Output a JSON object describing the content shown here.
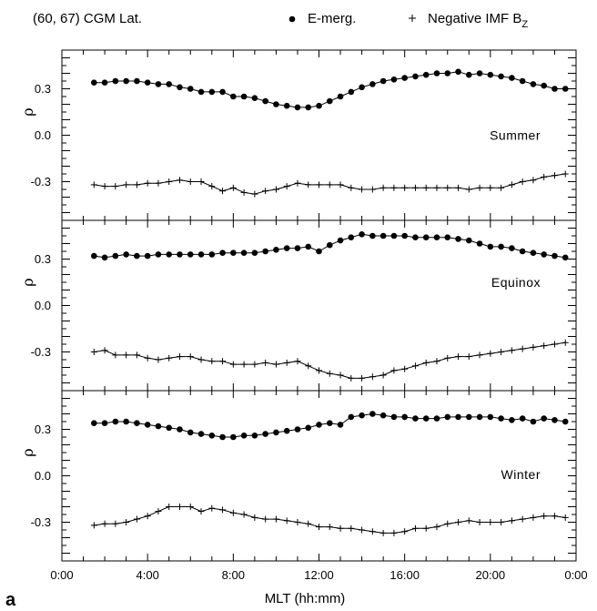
{
  "header": {
    "title": "(60, 67) CGM Lat.",
    "legend_emerg": "E-merg.",
    "legend_imf_prefix": "Negative IMF B",
    "legend_imf_sub": "Z"
  },
  "panel_letter": "a",
  "chart_data": {
    "type": "line",
    "xlabel": "MLT (hh:mm)",
    "ylabel": "ρ",
    "xlim": [
      0,
      24
    ],
    "ylim": [
      -0.55,
      0.55
    ],
    "x_tick_labels": [
      "0:00",
      "4:00",
      "8:00",
      "12:00",
      "16:00",
      "20:00",
      "0:00"
    ],
    "x_tick_values": [
      0,
      4,
      8,
      12,
      16,
      20,
      24
    ],
    "y_tick_labels": [
      "0.3",
      "0.0",
      "-0.3"
    ],
    "y_tick_values": [
      0.3,
      0.0,
      -0.3
    ],
    "x_start": 1.5,
    "x_step": 0.5,
    "legend": {
      "placement": "top"
    },
    "panels": [
      {
        "label": "Summer",
        "series": [
          {
            "name": "E-merg.",
            "marker": "dot",
            "values": [
              0.34,
              0.34,
              0.35,
              0.35,
              0.35,
              0.34,
              0.33,
              0.33,
              0.31,
              0.3,
              0.28,
              0.28,
              0.28,
              0.25,
              0.25,
              0.24,
              0.22,
              0.2,
              0.19,
              0.18,
              0.18,
              0.19,
              0.22,
              0.25,
              0.28,
              0.31,
              0.33,
              0.35,
              0.36,
              0.37,
              0.38,
              0.39,
              0.4,
              0.4,
              0.41,
              0.39,
              0.4,
              0.39,
              0.38,
              0.37,
              0.35,
              0.33,
              0.32,
              0.3,
              0.3
            ]
          },
          {
            "name": "Negative IMF BZ",
            "marker": "plus",
            "values": [
              -0.32,
              -0.33,
              -0.33,
              -0.32,
              -0.32,
              -0.31,
              -0.31,
              -0.3,
              -0.29,
              -0.3,
              -0.3,
              -0.33,
              -0.36,
              -0.34,
              -0.37,
              -0.38,
              -0.36,
              -0.35,
              -0.33,
              -0.31,
              -0.32,
              -0.32,
              -0.32,
              -0.32,
              -0.34,
              -0.35,
              -0.35,
              -0.34,
              -0.34,
              -0.34,
              -0.34,
              -0.34,
              -0.34,
              -0.34,
              -0.34,
              -0.35,
              -0.34,
              -0.34,
              -0.34,
              -0.32,
              -0.3,
              -0.29,
              -0.27,
              -0.26,
              -0.25
            ]
          }
        ]
      },
      {
        "label": "Equinox",
        "series": [
          {
            "name": "E-merg.",
            "marker": "dot",
            "values": [
              0.32,
              0.31,
              0.32,
              0.33,
              0.32,
              0.32,
              0.33,
              0.33,
              0.33,
              0.33,
              0.33,
              0.33,
              0.34,
              0.34,
              0.34,
              0.34,
              0.35,
              0.36,
              0.37,
              0.37,
              0.38,
              0.35,
              0.39,
              0.42,
              0.44,
              0.46,
              0.45,
              0.45,
              0.45,
              0.45,
              0.44,
              0.44,
              0.44,
              0.44,
              0.43,
              0.42,
              0.4,
              0.38,
              0.38,
              0.37,
              0.35,
              0.34,
              0.33,
              0.32,
              0.31
            ]
          },
          {
            "name": "Negative IMF BZ",
            "marker": "plus",
            "values": [
              -0.3,
              -0.29,
              -0.32,
              -0.32,
              -0.32,
              -0.34,
              -0.35,
              -0.34,
              -0.33,
              -0.33,
              -0.35,
              -0.36,
              -0.36,
              -0.38,
              -0.38,
              -0.38,
              -0.37,
              -0.38,
              -0.37,
              -0.36,
              -0.39,
              -0.42,
              -0.44,
              -0.45,
              -0.47,
              -0.47,
              -0.46,
              -0.45,
              -0.42,
              -0.41,
              -0.39,
              -0.37,
              -0.36,
              -0.34,
              -0.33,
              -0.33,
              -0.32,
              -0.31,
              -0.3,
              -0.29,
              -0.28,
              -0.27,
              -0.26,
              -0.25,
              -0.24
            ]
          }
        ]
      },
      {
        "label": "Winter",
        "series": [
          {
            "name": "E-merg.",
            "marker": "dot",
            "values": [
              0.34,
              0.34,
              0.35,
              0.35,
              0.34,
              0.33,
              0.32,
              0.31,
              0.3,
              0.28,
              0.27,
              0.26,
              0.25,
              0.25,
              0.26,
              0.26,
              0.27,
              0.28,
              0.29,
              0.3,
              0.31,
              0.33,
              0.34,
              0.33,
              0.38,
              0.39,
              0.4,
              0.39,
              0.38,
              0.38,
              0.37,
              0.37,
              0.37,
              0.38,
              0.38,
              0.38,
              0.38,
              0.38,
              0.37,
              0.36,
              0.37,
              0.35,
              0.37,
              0.36,
              0.35
            ]
          },
          {
            "name": "Negative IMF BZ",
            "marker": "plus",
            "values": [
              -0.32,
              -0.31,
              -0.31,
              -0.3,
              -0.28,
              -0.26,
              -0.23,
              -0.2,
              -0.2,
              -0.2,
              -0.23,
              -0.21,
              -0.22,
              -0.24,
              -0.25,
              -0.27,
              -0.28,
              -0.28,
              -0.29,
              -0.3,
              -0.31,
              -0.33,
              -0.33,
              -0.34,
              -0.34,
              -0.35,
              -0.36,
              -0.37,
              -0.37,
              -0.36,
              -0.34,
              -0.34,
              -0.33,
              -0.31,
              -0.3,
              -0.29,
              -0.3,
              -0.3,
              -0.3,
              -0.29,
              -0.28,
              -0.27,
              -0.26,
              -0.26,
              -0.27
            ]
          }
        ]
      }
    ]
  }
}
